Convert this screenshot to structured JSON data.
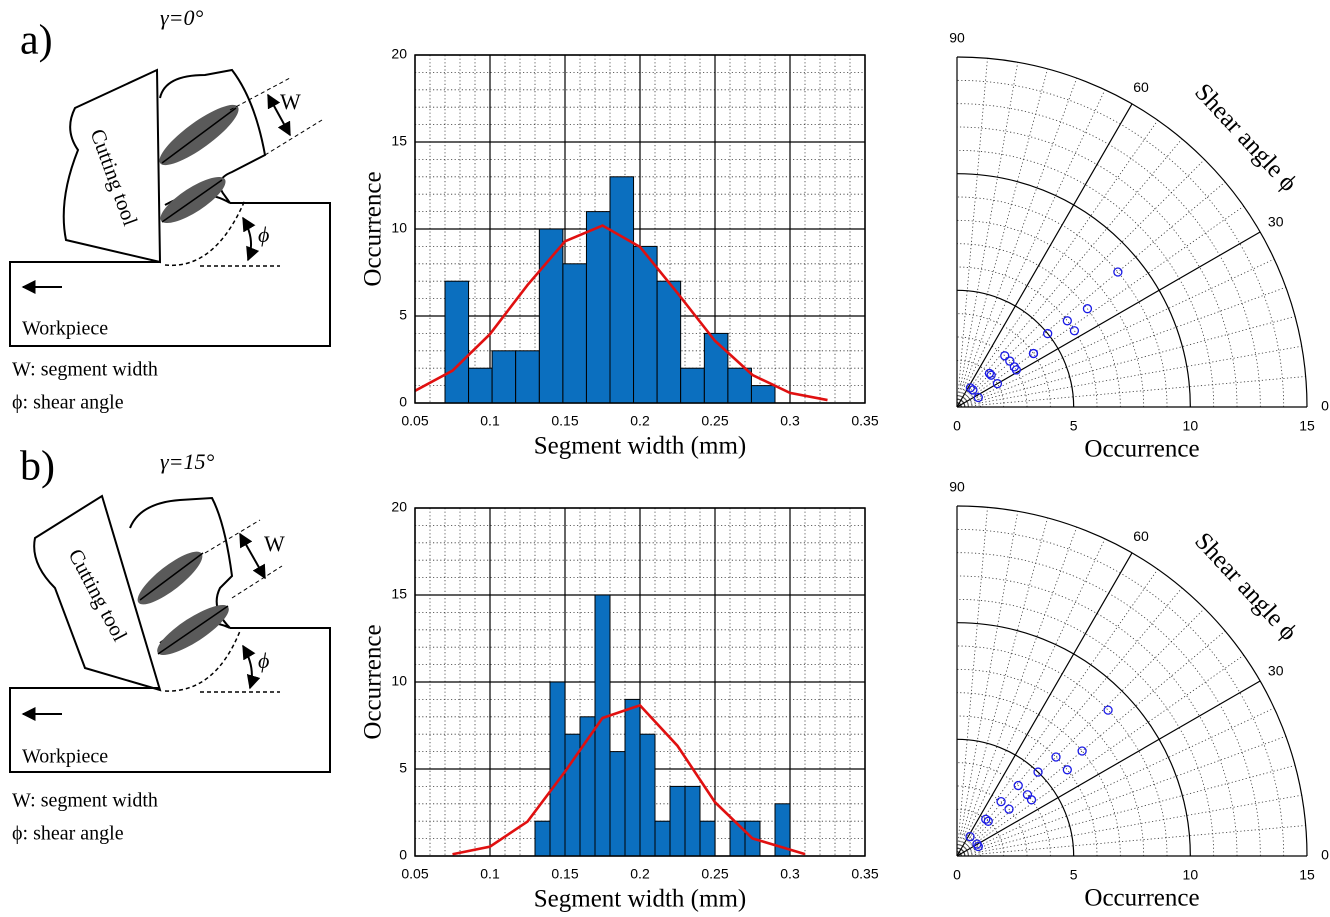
{
  "diagrams": [
    {
      "label": "a)",
      "rake_angle": "γ=0°",
      "tool": "Cutting tool",
      "width": "W",
      "angle": "ϕ",
      "workpiece": "Workpiece",
      "legend": [
        "W: segment width",
        "ϕ: shear angle"
      ]
    },
    {
      "label": "b)",
      "rake_angle": "γ=15°",
      "tool": "Cutting tool",
      "width": "W",
      "angle": "ϕ",
      "workpiece": "Workpiece",
      "legend": [
        "W: segment width",
        "ϕ: shear angle"
      ]
    }
  ],
  "chart_data": [
    {
      "type": "histogram",
      "xlabel": "Segment width (mm)",
      "ylabel": "Occurrence",
      "color": "#0b6fbf",
      "bins": [
        0.07,
        0.0857,
        0.1014,
        0.1171,
        0.1329,
        0.1486,
        0.1643,
        0.18,
        0.1957,
        0.2114,
        0.2271,
        0.2429,
        0.2586,
        0.2743,
        0.29
      ],
      "values": [
        7,
        2,
        3,
        3,
        10,
        8,
        11,
        13,
        9,
        7,
        2,
        4,
        2,
        1
      ],
      "fit": {
        "color": "#e01010",
        "x": [
          0.05,
          0.075,
          0.1,
          0.125,
          0.15,
          0.175,
          0.2,
          0.225,
          0.25,
          0.275,
          0.3,
          0.325
        ],
        "values": [
          0.7,
          1.86,
          3.96,
          6.78,
          9.29,
          10.2,
          8.97,
          6.32,
          3.57,
          1.61,
          0.58,
          0.17
        ]
      },
      "xlim": [
        0.05,
        0.35
      ],
      "xticks": [
        0.05,
        0.1,
        0.15,
        0.2,
        0.25,
        0.3,
        0.35
      ],
      "xminorticks": [
        0.06,
        0.07,
        0.08,
        0.09,
        0.11,
        0.12,
        0.13,
        0.14,
        0.16,
        0.17,
        0.18,
        0.19,
        0.21,
        0.22,
        0.23,
        0.24,
        0.26,
        0.27,
        0.28,
        0.29,
        0.31,
        0.32,
        0.33,
        0.34
      ],
      "ylim": [
        0,
        20
      ],
      "yticks": [
        0,
        5,
        10,
        15,
        20
      ],
      "yminorticks": [
        1,
        2,
        3,
        4,
        6,
        7,
        8,
        9,
        11,
        12,
        13,
        14,
        16,
        17,
        18,
        19
      ]
    },
    {
      "type": "polar_scatter",
      "rlabel": "Occurrence",
      "thetalabel": "Shear angle ϕ",
      "color": "#1a1ae6",
      "r": [
        1,
        1,
        1,
        2,
        2,
        2,
        3,
        3,
        3,
        3,
        4,
        4,
        5,
        6,
        6,
        7,
        9
      ],
      "theta": [
        55,
        24,
        47,
        46,
        43,
        30,
        47,
        41,
        35,
        32,
        35,
        35,
        39,
        38,
        33,
        37,
        40
      ],
      "rlim": [
        0,
        15
      ],
      "rticks": [
        0,
        5,
        10,
        15
      ],
      "rminorticks": [
        1,
        2,
        3,
        4,
        6,
        7,
        8,
        9,
        11,
        12,
        13,
        14
      ],
      "thetalim": [
        0,
        90
      ],
      "thetaticks": [
        0,
        30,
        60,
        90
      ],
      "thetaminorticks": [
        5,
        10,
        15,
        20,
        25,
        35,
        40,
        45,
        50,
        55,
        65,
        70,
        75,
        80,
        85
      ]
    },
    {
      "type": "histogram",
      "xlabel": "Segment width (mm)",
      "ylabel": "Occurrence",
      "color": "#0b6fbf",
      "bins": [
        0.13,
        0.14,
        0.15,
        0.16,
        0.17,
        0.18,
        0.19,
        0.2,
        0.21,
        0.22,
        0.23,
        0.24,
        0.25,
        0.26,
        0.27,
        0.28,
        0.29,
        0.3
      ],
      "values": [
        2,
        10,
        7,
        8,
        15,
        6,
        9,
        7,
        2,
        4,
        4,
        2,
        0,
        2,
        2,
        0,
        3
      ],
      "fit": {
        "color": "#e01010",
        "x": [
          0.075,
          0.1,
          0.125,
          0.15,
          0.175,
          0.2,
          0.225,
          0.25,
          0.275,
          0.31
        ],
        "values": [
          0.1,
          0.54,
          1.98,
          4.85,
          7.93,
          8.66,
          6.33,
          3.09,
          1.01,
          0.11
        ]
      },
      "xlim": [
        0.05,
        0.35
      ],
      "xticks": [
        0.05,
        0.1,
        0.15,
        0.2,
        0.25,
        0.3,
        0.35
      ],
      "xminorticks": [
        0.06,
        0.07,
        0.08,
        0.09,
        0.11,
        0.12,
        0.13,
        0.14,
        0.16,
        0.17,
        0.18,
        0.19,
        0.21,
        0.22,
        0.23,
        0.24,
        0.26,
        0.27,
        0.28,
        0.29,
        0.31,
        0.32,
        0.33,
        0.34
      ],
      "ylim": [
        0,
        20
      ],
      "yticks": [
        0,
        5,
        10,
        15,
        20
      ],
      "yminorticks": [
        1,
        2,
        3,
        4,
        6,
        7,
        8,
        9,
        11,
        12,
        13,
        14,
        16,
        17,
        18,
        19
      ]
    },
    {
      "type": "polar_scatter",
      "rlabel": "Occurrence",
      "thetalabel": "Shear angle ϕ",
      "color": "#1a1ae6",
      "r": [
        1,
        1,
        1,
        2,
        2,
        3,
        3,
        4,
        4,
        4,
        5,
        6,
        6,
        7,
        9
      ],
      "theta": [
        56,
        31,
        24,
        52,
        48,
        51,
        42,
        49,
        41,
        37,
        46,
        45,
        38,
        40,
        44
      ],
      "rlim": [
        0,
        15
      ],
      "rticks": [
        0,
        5,
        10,
        15
      ],
      "rminorticks": [
        1,
        2,
        3,
        4,
        6,
        7,
        8,
        9,
        11,
        12,
        13,
        14
      ],
      "thetalim": [
        0,
        90
      ],
      "thetaticks": [
        0,
        30,
        60,
        90
      ],
      "thetaminorticks": [
        5,
        10,
        15,
        20,
        25,
        35,
        40,
        45,
        50,
        55,
        65,
        70,
        75,
        80,
        85
      ]
    }
  ]
}
